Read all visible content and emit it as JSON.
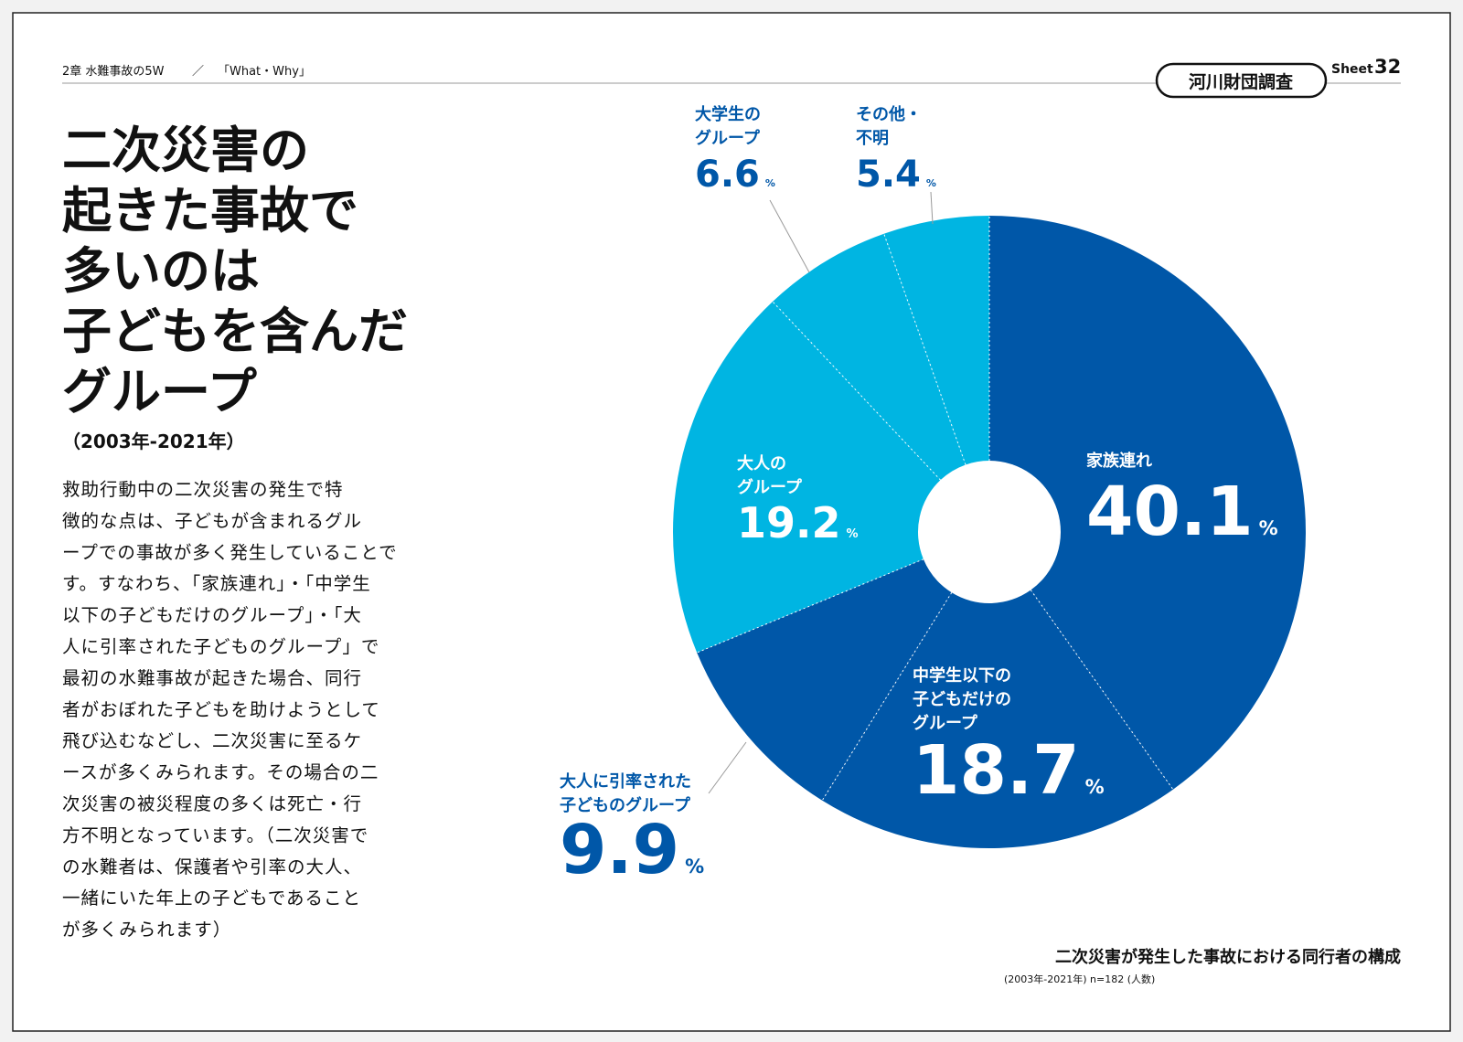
{
  "header": {
    "chapter": "2章 水難事故の5W",
    "divider": "／",
    "section": "「What・Why」",
    "badge": "河川財団調査",
    "sheet_label": "Sheet",
    "sheet_number": "32"
  },
  "title_lines": [
    "二次災害の",
    "起きた事故で",
    "多いのは",
    "子どもを含んだ",
    "グループ"
  ],
  "subtitle": "（2003年-2021年）",
  "body_lines": [
    "救助行動中の二次災害の発生で特",
    "徴的な点は、子どもが含まれるグル",
    "ープでの事故が多く発生していることで",
    "す。すなわち、「家族連れ」・「中学生",
    "以下の子どもだけのグループ」・「大",
    "人に引率された子どものグループ」で",
    "最初の水難事故が起きた場合、同行",
    "者がおぼれた子どもを助けようとして",
    "飛び込むなどし、二次災害に至るケ",
    "ースが多くみられます。その場合の二",
    "次災害の被災程度の多くは死亡・行",
    "方不明となっています。（二次災害で",
    "の水難者は、保護者や引率の大人、",
    "一緒にいた年上の子どもであること",
    "が多くみられます）"
  ],
  "chart_data": {
    "type": "donut",
    "categories": [
      [
        "家族連れ"
      ],
      [
        "中学生以下の",
        "子どもだけの",
        "グループ"
      ],
      [
        "大人に引率された",
        "子どものグループ"
      ],
      [
        "大人の",
        "グループ"
      ],
      [
        "大学生の",
        "グループ"
      ],
      [
        "その他・",
        "不明"
      ]
    ],
    "values": [
      40.1,
      18.7,
      9.9,
      19.2,
      6.6,
      5.4
    ],
    "unit": "%",
    "colors": [
      "#0057a8",
      "#0057a8",
      "#0057a8",
      "#00b5e2",
      "#00b5e2",
      "#00b5e2"
    ],
    "caption": "二次災害が発生した事故における同行者の構成",
    "note": "(2003年-2021年) n=182 (人数)"
  }
}
